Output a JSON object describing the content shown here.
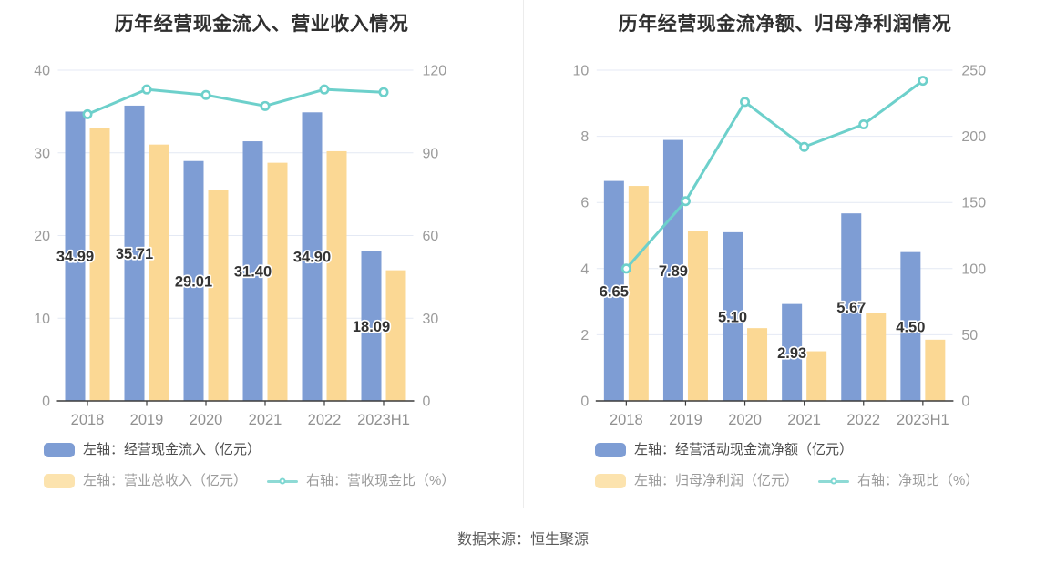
{
  "page": {
    "source_note": "数据来源：恒生聚源"
  },
  "colors": {
    "bar_blue": "#7e9dd4",
    "bar_yellow": "#fbd894",
    "line_teal": "#6dd0cb",
    "grid": "#e4e9f4",
    "axis_line": "#3c3c3c",
    "axis_label": "#9b9b9b",
    "x_label": "#909090",
    "data_label": "#333333",
    "title": "#2f2f2f",
    "divider": "#ececec",
    "background": "#ffffff"
  },
  "chart_data": [
    {
      "type": "bar+line",
      "title": "历年经营现金流入、营业收入情况",
      "categories": [
        "2018",
        "2019",
        "2020",
        "2021",
        "2022",
        "2023H1"
      ],
      "left_axis": {
        "min": 0,
        "max": 40,
        "ticks": [
          0,
          10,
          20,
          30,
          40
        ]
      },
      "right_axis": {
        "min": 0,
        "max": 120,
        "ticks": [
          0,
          30,
          60,
          90,
          120
        ]
      },
      "grid": true,
      "legend_position": "bottom-left",
      "series": [
        {
          "name": "左轴：经营现金流入（亿元）",
          "type": "bar",
          "axis": "left",
          "values": [
            34.99,
            35.71,
            29.01,
            31.4,
            34.9,
            18.09
          ],
          "labels": [
            "34.99",
            "35.71",
            "29.01",
            "31.40",
            "34.90",
            "18.09"
          ]
        },
        {
          "name": "左轴：营业总收入（亿元）",
          "type": "bar",
          "axis": "left",
          "values": [
            33.0,
            31.0,
            25.5,
            28.8,
            30.2,
            15.8
          ]
        },
        {
          "name": "右轴：营收现金比（%）",
          "type": "line",
          "axis": "right",
          "values": [
            104,
            113,
            111,
            107,
            113,
            112
          ]
        }
      ]
    },
    {
      "type": "bar+line",
      "title": "历年经营现金流净额、归母净利润情况",
      "categories": [
        "2018",
        "2019",
        "2020",
        "2021",
        "2022",
        "2023H1"
      ],
      "left_axis": {
        "min": 0,
        "max": 10,
        "ticks": [
          0,
          2,
          4,
          6,
          8,
          10
        ]
      },
      "right_axis": {
        "min": 0,
        "max": 250,
        "ticks": [
          0,
          50,
          100,
          150,
          200,
          250
        ]
      },
      "grid": true,
      "legend_position": "bottom-left",
      "series": [
        {
          "name": "左轴：经营活动现金流净额（亿元）",
          "type": "bar",
          "axis": "left",
          "values": [
            6.65,
            7.89,
            5.1,
            2.93,
            5.67,
            4.5
          ],
          "labels": [
            "6.65",
            "7.89",
            "5.10",
            "2.93",
            "5.67",
            "4.50"
          ]
        },
        {
          "name": "左轴：归母净利润（亿元）",
          "type": "bar",
          "axis": "left",
          "values": [
            6.5,
            5.15,
            2.2,
            1.5,
            2.65,
            1.85
          ]
        },
        {
          "name": "右轴：净现比（%）",
          "type": "line",
          "axis": "right",
          "values": [
            100,
            151,
            226,
            192,
            209,
            242
          ]
        }
      ]
    }
  ]
}
